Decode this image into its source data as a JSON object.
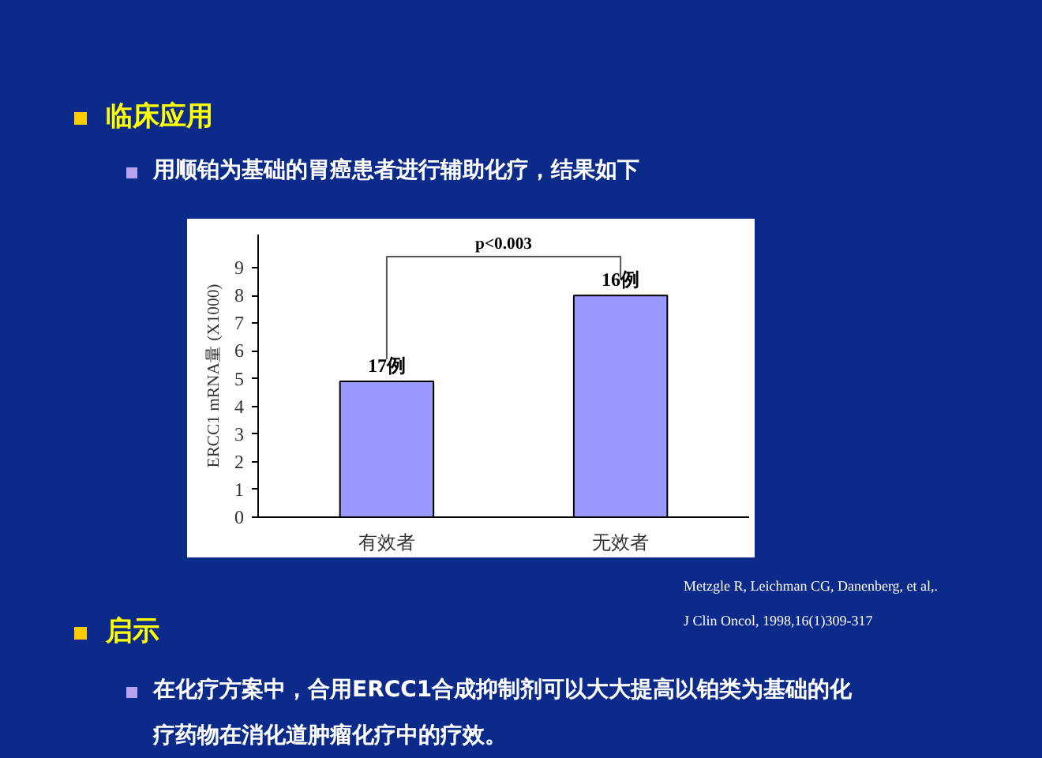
{
  "chart_data": {
    "type": "bar",
    "title": "临床应用",
    "subtitle": "用顺铂为基础的胃癌患者进行辅助化疗，结果如下",
    "ylabel": "ERCC1 mRNA量 (X1000)",
    "categories": [
      "有效者",
      "无效者"
    ],
    "values": [
      4.9,
      8.0
    ],
    "color": "#9999ff",
    "ylim": [
      0,
      10.2
    ],
    "yticks": [
      0,
      1,
      2,
      3,
      4,
      5,
      6,
      7,
      8,
      9
    ],
    "grid": false,
    "annotations": [
      {
        "text": "17例",
        "x": "有效者",
        "y": 4.9
      },
      {
        "text": "16例",
        "x": "无效者",
        "y": 8.0
      },
      "p<0.003",
      "Metzgle R, Leichman CG, Danenberg, et al,.",
      "J Clin Oncol, 1998,16(1)309-317",
      "启示",
      "在化疗方案中，合用ERCC1合成抑制剂可以大大提高以铂类为基础的化",
      "疗药物在消化道肿瘤化疗中的疗效。"
    ]
  }
}
